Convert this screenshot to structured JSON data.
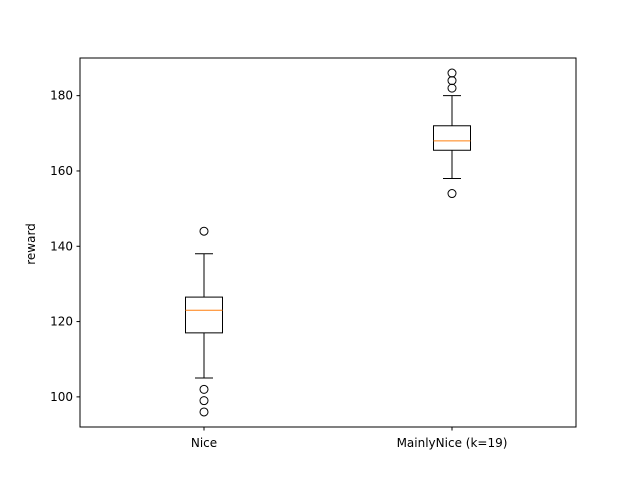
{
  "chart_data": {
    "type": "box",
    "title": "",
    "xlabel": "",
    "ylabel": "reward",
    "ylim": [
      92,
      190
    ],
    "yticks": [
      100,
      120,
      140,
      160,
      180
    ],
    "grid": false,
    "legend": "none",
    "colors": {
      "box": "#000000",
      "median": "#ff7f0e",
      "background": "#ffffff"
    },
    "categories": [
      "Nice",
      "MainlyNice (k=19)"
    ],
    "boxes": [
      {
        "label": "Nice",
        "whisker_low": 105,
        "q1": 117,
        "median": 123,
        "q3": 126.5,
        "whisker_high": 138,
        "outliers": [
          144,
          102,
          99,
          96
        ]
      },
      {
        "label": "MainlyNice (k=19)",
        "whisker_low": 158,
        "q1": 165.5,
        "median": 168,
        "q3": 172,
        "whisker_high": 180,
        "outliers": [
          186,
          184,
          182,
          154
        ]
      }
    ]
  }
}
